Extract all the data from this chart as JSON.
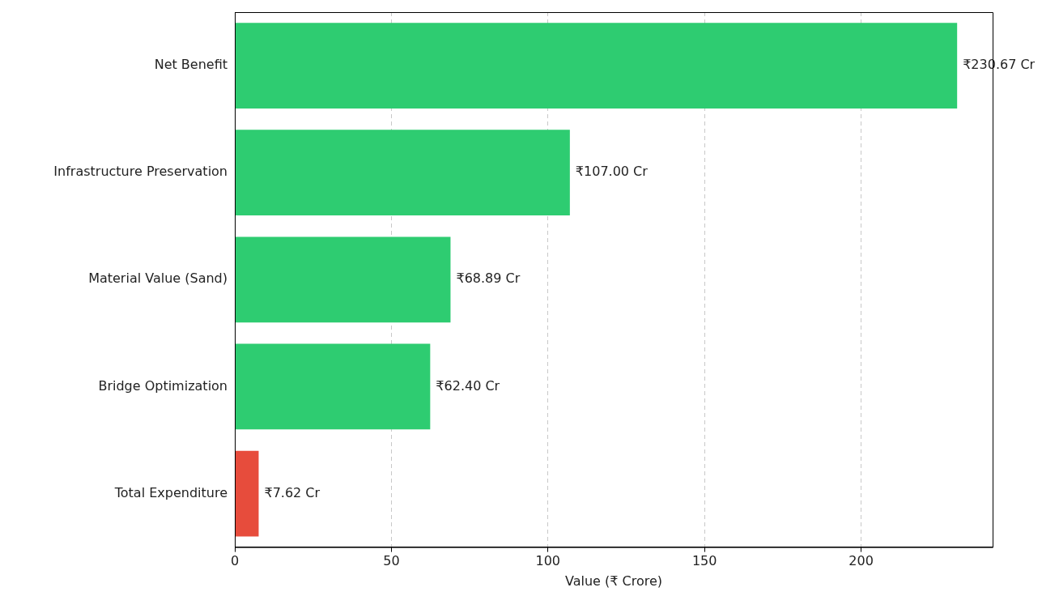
{
  "chart_data": {
    "type": "bar",
    "orientation": "horizontal",
    "xlabel": "Value (₹ Crore)",
    "categories": [
      "Net Benefit",
      "Infrastructure Preservation",
      "Material Value (Sand)",
      "Bridge Optimization",
      "Total Expenditure"
    ],
    "values": [
      230.67,
      107.0,
      68.89,
      62.4,
      7.62
    ],
    "colors": [
      "#2ecc71",
      "#2ecc71",
      "#2ecc71",
      "#2ecc71",
      "#e74c3c"
    ],
    "value_labels": [
      "₹230.67 Cr",
      "₹107.00 Cr",
      "₹68.89 Cr",
      "₹62.40 Cr",
      "₹7.62 Cr"
    ],
    "xlim": [
      0,
      242
    ],
    "xticks": [
      0,
      50,
      100,
      150,
      200
    ],
    "grid": "x",
    "legend": false
  }
}
